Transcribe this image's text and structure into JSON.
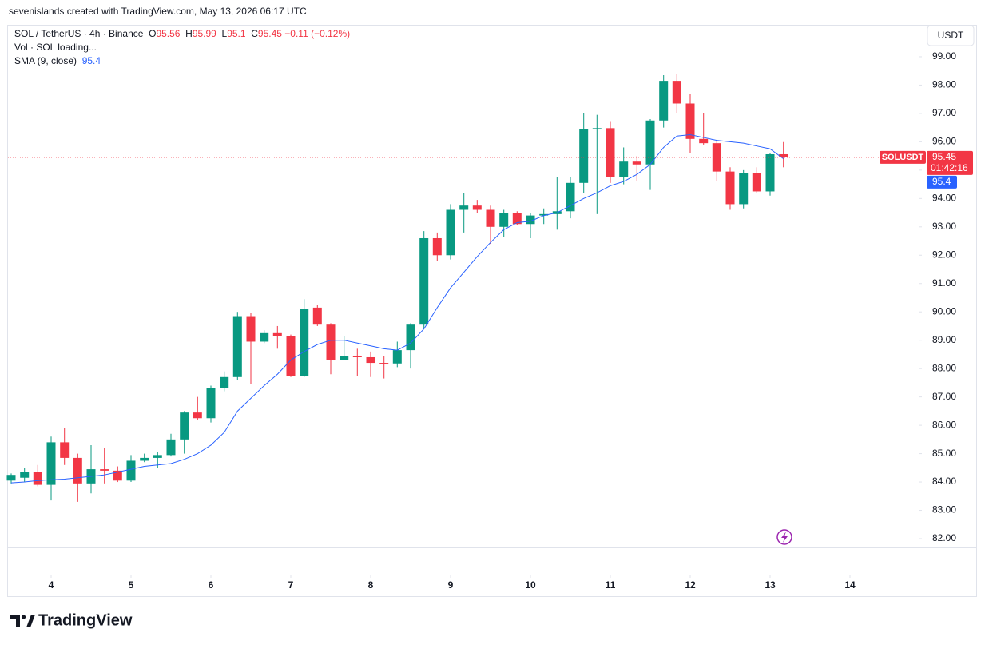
{
  "page": {
    "attribution": "sevenislands created with TradingView.com, May 13, 2026 06:17 UTC",
    "volume_label": "Vol · SOL loading...",
    "currency": "USDT",
    "symbol_tag": "SOLUSDT",
    "countdown": "01:42:16",
    "brand": "TradingView",
    "ohlc_labels": [
      "O",
      "H",
      "L",
      "C"
    ],
    "change": "−0.11 (−0.12%)"
  },
  "chart_data": {
    "type": "candlestick",
    "title": "SOL / TetherUS · 4h · Binance",
    "up_color": "#089981",
    "down_color": "#f23645",
    "x": [
      3.5,
      3.667,
      3.833,
      4,
      4.167,
      4.333,
      4.5,
      4.667,
      4.833,
      5,
      5.167,
      5.333,
      5.5,
      5.667,
      5.833,
      6,
      6.167,
      6.333,
      6.5,
      6.667,
      6.833,
      7,
      7.167,
      7.333,
      7.5,
      7.667,
      7.833,
      8,
      8.167,
      8.333,
      8.5,
      8.667,
      8.833,
      9,
      9.167,
      9.333,
      9.5,
      9.667,
      9.833,
      10,
      10.167,
      10.333,
      10.5,
      10.667,
      10.833,
      11,
      11.167,
      11.333,
      11.5,
      11.667,
      11.833,
      12,
      12.167,
      12.333,
      12.5,
      12.667,
      12.833,
      13,
      13.167
    ],
    "open": [
      84.05,
      84.15,
      84.35,
      83.9,
      85.4,
      84.85,
      83.95,
      84.45,
      84.4,
      84.05,
      84.75,
      84.85,
      84.95,
      85.5,
      86.45,
      86.25,
      87.3,
      87.7,
      89.85,
      88.95,
      89.25,
      89.15,
      87.75,
      90.15,
      89.55,
      88.3,
      88.45,
      88.4,
      88.2,
      88.18,
      88.65,
      89.55,
      92.6,
      92.0,
      93.6,
      93.75,
      93.6,
      93.0,
      93.5,
      93.1,
      93.4,
      93.45,
      93.55,
      94.55,
      96.45,
      96.48,
      94.75,
      95.3,
      95.2,
      96.75,
      98.15,
      97.35,
      96.1,
      95.95,
      94.95,
      93.8,
      94.9,
      94.25,
      95.56
    ],
    "high": [
      84.3,
      84.5,
      84.6,
      85.6,
      85.9,
      85.0,
      85.3,
      85.2,
      84.55,
      84.95,
      85.0,
      85.05,
      85.7,
      86.5,
      87.0,
      87.4,
      87.9,
      90.0,
      89.95,
      89.35,
      89.5,
      89.2,
      90.45,
      90.25,
      89.6,
      89.15,
      88.7,
      88.6,
      88.45,
      88.95,
      89.6,
      92.85,
      92.8,
      93.8,
      94.2,
      93.95,
      93.75,
      93.6,
      93.55,
      93.5,
      93.65,
      94.75,
      94.75,
      97.0,
      96.95,
      96.7,
      95.8,
      95.5,
      96.8,
      98.35,
      98.4,
      97.7,
      97.0,
      96.05,
      95.1,
      95.0,
      95.1,
      95.6,
      95.99
    ],
    "low": [
      83.95,
      84.0,
      83.85,
      83.35,
      84.6,
      83.3,
      83.6,
      83.95,
      84.0,
      84.0,
      84.7,
      84.5,
      84.9,
      85.0,
      86.2,
      86.1,
      87.2,
      87.6,
      87.45,
      88.9,
      88.7,
      87.7,
      87.7,
      89.5,
      87.8,
      88.3,
      87.75,
      87.7,
      87.65,
      88.05,
      88.0,
      89.4,
      91.8,
      91.85,
      92.8,
      93.5,
      92.4,
      92.65,
      93.05,
      92.6,
      93.1,
      92.9,
      93.3,
      94.2,
      93.45,
      94.55,
      94.5,
      94.6,
      94.3,
      96.5,
      97.0,
      95.6,
      95.9,
      94.6,
      93.6,
      93.65,
      94.2,
      94.1,
      95.1
    ],
    "close": [
      84.25,
      84.35,
      83.9,
      85.4,
      84.85,
      83.95,
      84.45,
      84.4,
      84.05,
      84.75,
      84.85,
      84.95,
      85.5,
      86.45,
      86.25,
      87.3,
      87.7,
      89.85,
      88.95,
      89.25,
      89.15,
      87.75,
      90.1,
      89.55,
      88.3,
      88.45,
      88.4,
      88.2,
      88.18,
      88.65,
      89.55,
      92.6,
      92.0,
      93.6,
      93.75,
      93.6,
      93.0,
      93.5,
      93.1,
      93.4,
      93.45,
      93.55,
      94.55,
      96.45,
      96.48,
      94.75,
      95.3,
      95.2,
      96.75,
      98.15,
      97.35,
      96.1,
      95.95,
      94.95,
      93.8,
      94.9,
      94.25,
      95.56,
      95.45
    ],
    "sma": {
      "name": "SMA (9, close)",
      "color": "#2962ff",
      "values": [
        83.97,
        84.0,
        84.05,
        84.08,
        84.1,
        84.15,
        84.2,
        84.25,
        84.35,
        84.45,
        84.55,
        84.6,
        84.65,
        84.8,
        85.0,
        85.3,
        85.75,
        86.5,
        86.95,
        87.4,
        87.8,
        88.3,
        88.6,
        88.85,
        89.0,
        89.0,
        88.9,
        88.8,
        88.7,
        88.65,
        88.9,
        89.4,
        90.15,
        90.85,
        91.4,
        91.95,
        92.45,
        92.9,
        93.15,
        93.2,
        93.4,
        93.5,
        93.75,
        94.0,
        94.2,
        94.45,
        94.6,
        94.85,
        95.2,
        95.8,
        96.2,
        96.25,
        96.15,
        96.05,
        96.0,
        95.95,
        95.85,
        95.75,
        95.4
      ]
    },
    "xlim": [
      3.46,
      14.86
    ],
    "xticks": [
      4,
      5,
      6,
      7,
      8,
      9,
      10,
      11,
      12,
      13,
      14
    ],
    "ylim": [
      81.69,
      100.07
    ],
    "yticks": [
      {
        "value": 82,
        "label": "82.00"
      },
      {
        "value": 83,
        "label": "83.00"
      },
      {
        "value": 84,
        "label": "84.00"
      },
      {
        "value": 85,
        "label": "85.00"
      },
      {
        "value": 86,
        "label": "86.00"
      },
      {
        "value": 87,
        "label": "87.00"
      },
      {
        "value": 88,
        "label": "88.00"
      },
      {
        "value": 89,
        "label": "89.00"
      },
      {
        "value": 90,
        "label": "90.00"
      },
      {
        "value": 91,
        "label": "91.00"
      },
      {
        "value": 92,
        "label": "92.00"
      },
      {
        "value": 93,
        "label": "93.00"
      },
      {
        "value": 94,
        "label": "94.00"
      },
      {
        "value": 95,
        "label": "95.00"
      },
      {
        "value": 96,
        "label": "96.00"
      },
      {
        "value": 97,
        "label": "97.00"
      },
      {
        "value": 98,
        "label": "98.00"
      },
      {
        "value": 99,
        "label": "99.00"
      }
    ],
    "grid": false
  }
}
